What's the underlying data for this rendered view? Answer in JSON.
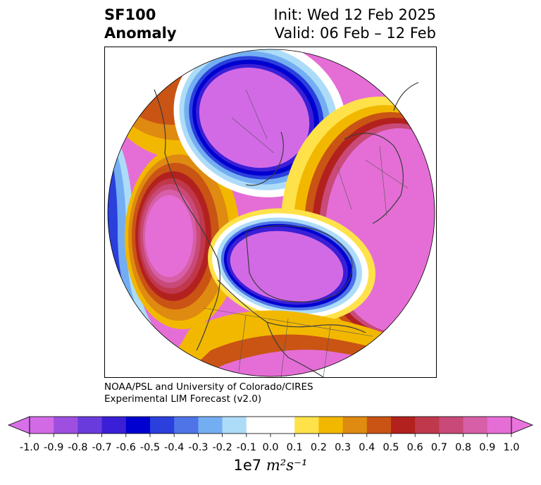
{
  "title": {
    "line1": "SF100",
    "line2": "Anomaly",
    "init": "Init: Wed 12 Feb 2025",
    "valid": "Valid: 06 Feb – 12 Feb"
  },
  "credit": {
    "line1": "NOAA/PSL and University of Colorado/CIRES",
    "line2": "Experimental LIM Forecast (v2.0)"
  },
  "colorbar": {
    "levels": [
      "-1.0",
      "-0.9",
      "-0.8",
      "-0.7",
      "-0.6",
      "-0.5",
      "-0.4",
      "-0.3",
      "-0.2",
      "-0.1",
      "0.0",
      "0.1",
      "0.2",
      "0.3",
      "0.4",
      "0.5",
      "0.6",
      "0.7",
      "0.8",
      "0.9",
      "1.0"
    ],
    "colors": [
      "#d26ae6",
      "#9e4fe0",
      "#6a3bdc",
      "#3a1fd6",
      "#0000d0",
      "#2a3fdc",
      "#4e74e8",
      "#74aef2",
      "#addcf8",
      "#ffffff",
      "#ffffff",
      "#ffe24a",
      "#f2b800",
      "#df8a10",
      "#c95414",
      "#b3211f",
      "#c0384c",
      "#c94a78",
      "#d75fa8",
      "#e56ed6"
    ],
    "under_color": "#d870e8",
    "over_color": "#e874dc",
    "units_prefix": "1e7",
    "units_suffix": "m²s⁻¹"
  }
}
